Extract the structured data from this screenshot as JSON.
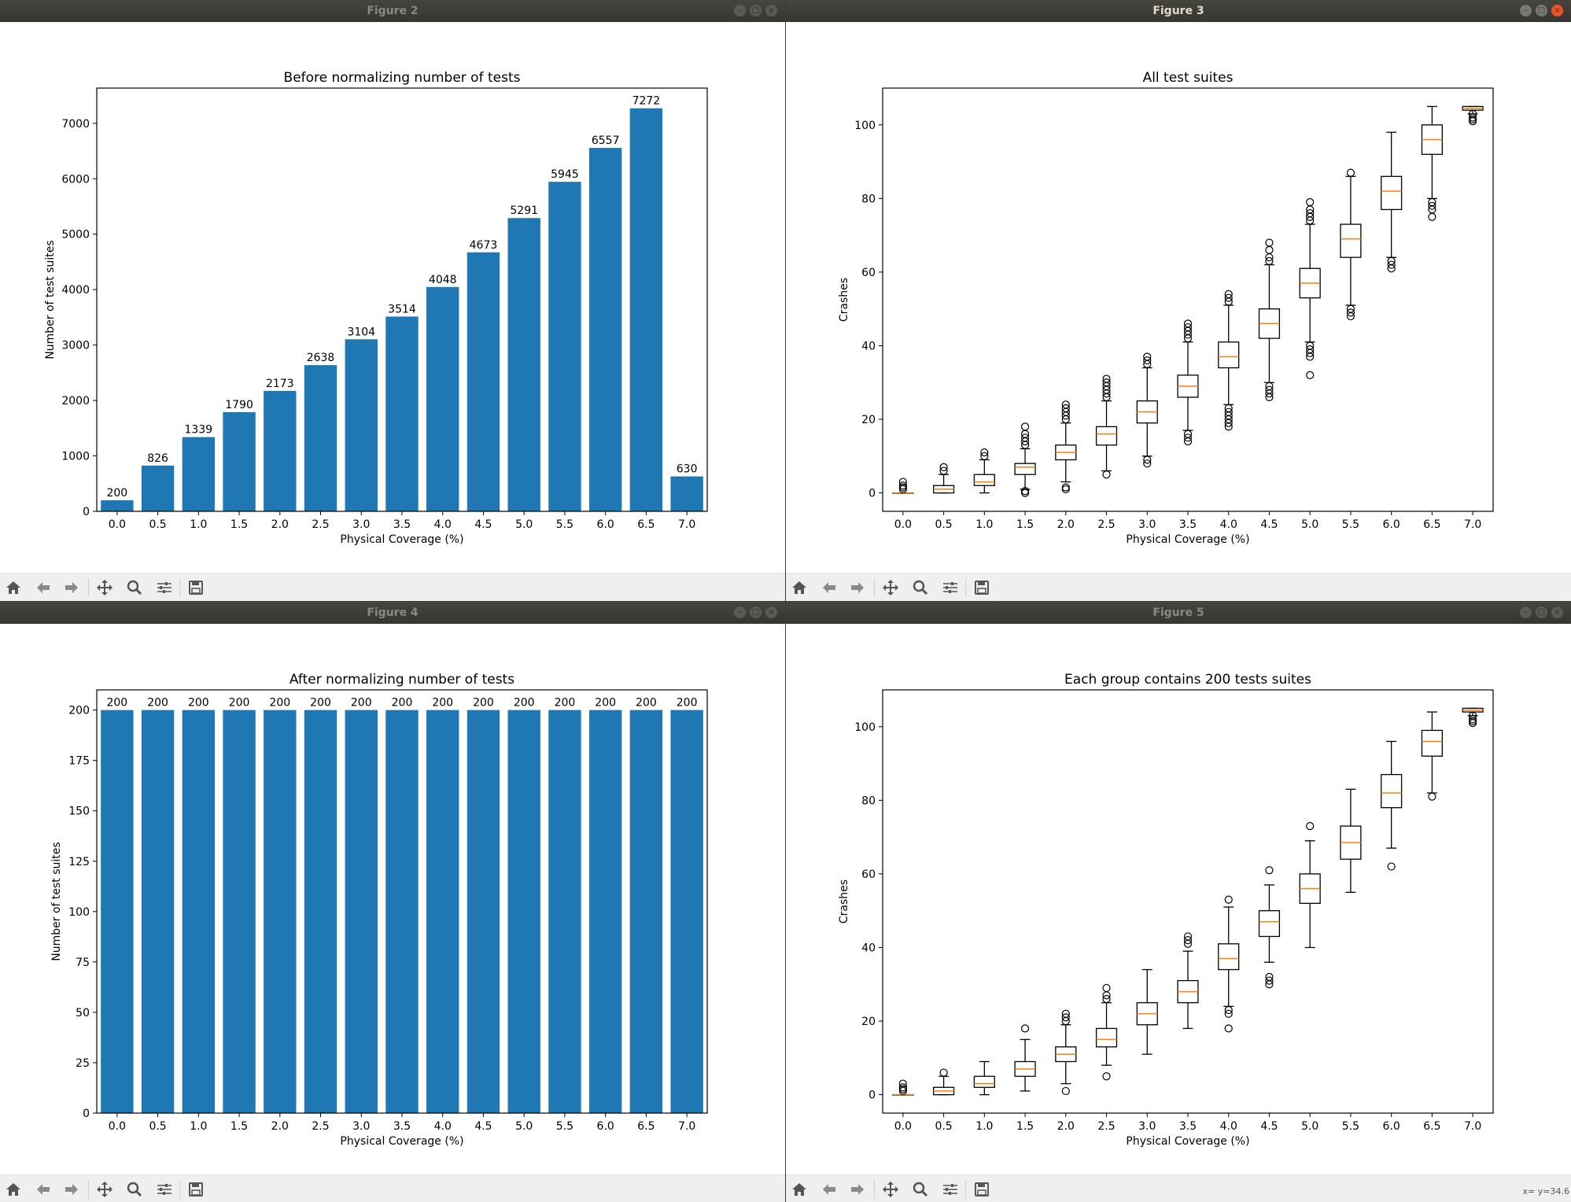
{
  "windows": [
    {
      "id": "figure-2",
      "title": "Figure 2",
      "chart_data": {
        "type": "bar",
        "title": "Before normalizing number of tests",
        "xlabel": "Physical Coverage (%)",
        "ylabel": "Number of test suites",
        "categories": [
          "0.0",
          "0.5",
          "1.0",
          "1.5",
          "2.0",
          "2.5",
          "3.0",
          "3.5",
          "4.0",
          "4.5",
          "5.0",
          "5.5",
          "6.0",
          "6.5",
          "7.0"
        ],
        "values": [
          200,
          826,
          1339,
          1790,
          2173,
          2638,
          3104,
          3514,
          4048,
          4673,
          5291,
          5945,
          6557,
          7272,
          630
        ],
        "data_labels": [
          "200",
          "826",
          "1339",
          "1790",
          "2173",
          "2638",
          "3104",
          "3514",
          "4048",
          "4673",
          "5291",
          "5945",
          "6557",
          "7272",
          "630"
        ],
        "ylim": [
          0,
          7636
        ],
        "yticks": [
          0,
          1000,
          2000,
          3000,
          4000,
          5000,
          6000,
          7000
        ],
        "color": "#1f77b4",
        "grid": false
      }
    },
    {
      "id": "figure-3",
      "title": "Figure 3",
      "chart_data": {
        "type": "boxplot",
        "title": "All test suites",
        "xlabel": "Physical Coverage (%)",
        "ylabel": "Crashes",
        "categories": [
          "0.0",
          "0.5",
          "1.0",
          "1.5",
          "2.0",
          "2.5",
          "3.0",
          "3.5",
          "4.0",
          "4.5",
          "5.0",
          "5.5",
          "6.0",
          "6.5",
          "7.0"
        ],
        "ylim": [
          -5,
          110
        ],
        "yticks": [
          0,
          20,
          40,
          60,
          80,
          100
        ],
        "median_color": "#ff7f0e",
        "grid": false,
        "boxes": [
          {
            "whislo": 0,
            "q1": 0,
            "med": 0,
            "q3": 0,
            "whishi": 0,
            "fliers": [
              1,
              1.5,
              2,
              3
            ]
          },
          {
            "whislo": 0,
            "q1": 0,
            "med": 1,
            "q3": 2,
            "whishi": 5,
            "fliers": [
              6,
              7
            ]
          },
          {
            "whislo": 0,
            "q1": 2,
            "med": 3,
            "q3": 5,
            "whishi": 9,
            "fliers": [
              10,
              11
            ]
          },
          {
            "whislo": 1,
            "q1": 5,
            "med": 7,
            "q3": 8,
            "whishi": 12,
            "fliers": [
              0,
              0.5,
              13,
              14,
              15,
              16,
              18
            ]
          },
          {
            "whislo": 3,
            "q1": 9,
            "med": 11,
            "q3": 13,
            "whishi": 19,
            "fliers": [
              1,
              1.5,
              20,
              21,
              22,
              23,
              24
            ]
          },
          {
            "whislo": 6,
            "q1": 13,
            "med": 16,
            "q3": 18,
            "whishi": 25,
            "fliers": [
              5,
              26,
              27,
              28,
              29,
              30,
              31
            ]
          },
          {
            "whislo": 10,
            "q1": 19,
            "med": 22,
            "q3": 25,
            "whishi": 34,
            "fliers": [
              8,
              9,
              35,
              36,
              37
            ]
          },
          {
            "whislo": 17,
            "q1": 26,
            "med": 29,
            "q3": 32,
            "whishi": 41,
            "fliers": [
              14,
              15,
              16,
              42,
              43,
              44,
              45,
              46
            ]
          },
          {
            "whislo": 24,
            "q1": 34,
            "med": 37,
            "q3": 41,
            "whishi": 51,
            "fliers": [
              18,
              19,
              20,
              21,
              22,
              23,
              52,
              53,
              54
            ]
          },
          {
            "whislo": 30,
            "q1": 42,
            "med": 46,
            "q3": 50,
            "whishi": 62,
            "fliers": [
              26,
              27,
              28,
              29,
              63,
              64,
              66,
              68
            ]
          },
          {
            "whislo": 41,
            "q1": 53,
            "med": 57,
            "q3": 61,
            "whishi": 73,
            "fliers": [
              32,
              37,
              38,
              39,
              40,
              74,
              75,
              76,
              77,
              79
            ]
          },
          {
            "whislo": 51,
            "q1": 64,
            "med": 69,
            "q3": 73,
            "whishi": 86,
            "fliers": [
              48,
              49,
              50,
              87
            ]
          },
          {
            "whislo": 64,
            "q1": 77,
            "med": 82,
            "q3": 86,
            "whishi": 98,
            "fliers": [
              61,
              62,
              63
            ]
          },
          {
            "whislo": 80,
            "q1": 92,
            "med": 96,
            "q3": 100,
            "whishi": 105,
            "fliers": [
              75,
              77,
              78,
              79
            ]
          },
          {
            "whislo": 103,
            "q1": 104,
            "med": 104.5,
            "q3": 105,
            "whishi": 105,
            "fliers": [
              101,
              101.5,
              102,
              103
            ]
          }
        ]
      }
    },
    {
      "id": "figure-4",
      "title": "Figure 4",
      "chart_data": {
        "type": "bar",
        "title": "After normalizing number of tests",
        "xlabel": "Physical Coverage (%)",
        "ylabel": "Number of test suites",
        "categories": [
          "0.0",
          "0.5",
          "1.0",
          "1.5",
          "2.0",
          "2.5",
          "3.0",
          "3.5",
          "4.0",
          "4.5",
          "5.0",
          "5.5",
          "6.0",
          "6.5",
          "7.0"
        ],
        "values": [
          200,
          200,
          200,
          200,
          200,
          200,
          200,
          200,
          200,
          200,
          200,
          200,
          200,
          200,
          200
        ],
        "data_labels": [
          "200",
          "200",
          "200",
          "200",
          "200",
          "200",
          "200",
          "200",
          "200",
          "200",
          "200",
          "200",
          "200",
          "200",
          "200"
        ],
        "ylim": [
          0,
          210
        ],
        "yticks": [
          0,
          25,
          50,
          75,
          100,
          125,
          150,
          175,
          200
        ],
        "color": "#1f77b4",
        "grid": false
      }
    },
    {
      "id": "figure-5",
      "title": "Figure 5",
      "chart_data": {
        "type": "boxplot",
        "title": "Each group contains 200 tests suites",
        "xlabel": "Physical Coverage (%)",
        "ylabel": "Crashes",
        "categories": [
          "0.0",
          "0.5",
          "1.0",
          "1.5",
          "2.0",
          "2.5",
          "3.0",
          "3.5",
          "4.0",
          "4.5",
          "5.0",
          "5.5",
          "6.0",
          "6.5",
          "7.0"
        ],
        "ylim": [
          -5,
          110
        ],
        "yticks": [
          0,
          20,
          40,
          60,
          80,
          100
        ],
        "median_color": "#ff7f0e",
        "grid": false,
        "boxes": [
          {
            "whislo": 0,
            "q1": 0,
            "med": 0,
            "q3": 0,
            "whishi": 0,
            "fliers": [
              1,
              1.5,
              2,
              3
            ]
          },
          {
            "whislo": 0,
            "q1": 0,
            "med": 1,
            "q3": 2,
            "whishi": 5,
            "fliers": [
              6
            ]
          },
          {
            "whislo": 0,
            "q1": 2,
            "med": 3,
            "q3": 5,
            "whishi": 9,
            "fliers": []
          },
          {
            "whislo": 1,
            "q1": 5,
            "med": 7,
            "q3": 9,
            "whishi": 15,
            "fliers": [
              18
            ]
          },
          {
            "whislo": 3,
            "q1": 9,
            "med": 11,
            "q3": 13,
            "whishi": 19,
            "fliers": [
              1,
              20,
              21,
              22
            ]
          },
          {
            "whislo": 8,
            "q1": 13,
            "med": 15,
            "q3": 18,
            "whishi": 25,
            "fliers": [
              5,
              26,
              27,
              29
            ]
          },
          {
            "whislo": 11,
            "q1": 19,
            "med": 22,
            "q3": 25,
            "whishi": 34,
            "fliers": []
          },
          {
            "whislo": 18,
            "q1": 25,
            "med": 28,
            "q3": 31,
            "whishi": 39,
            "fliers": [
              41,
              42,
              43
            ]
          },
          {
            "whislo": 24,
            "q1": 34,
            "med": 37,
            "q3": 41,
            "whishi": 51,
            "fliers": [
              18,
              22,
              23,
              53
            ]
          },
          {
            "whislo": 36,
            "q1": 43,
            "med": 47,
            "q3": 50,
            "whishi": 57,
            "fliers": [
              30,
              31,
              32,
              61
            ]
          },
          {
            "whislo": 40,
            "q1": 52,
            "med": 56,
            "q3": 60,
            "whishi": 69,
            "fliers": [
              73
            ]
          },
          {
            "whislo": 55,
            "q1": 64,
            "med": 68.5,
            "q3": 73,
            "whishi": 83,
            "fliers": []
          },
          {
            "whislo": 67,
            "q1": 78,
            "med": 82,
            "q3": 87,
            "whishi": 96,
            "fliers": [
              62
            ]
          },
          {
            "whislo": 82,
            "q1": 92,
            "med": 96,
            "q3": 99,
            "whishi": 104,
            "fliers": [
              81
            ]
          },
          {
            "whislo": 103,
            "q1": 104,
            "med": 104.5,
            "q3": 105,
            "whishi": 105,
            "fliers": [
              101,
              101.5,
              102,
              103
            ]
          }
        ]
      }
    }
  ],
  "toolbar": {
    "icons": [
      "home-icon",
      "back-icon",
      "forward-icon",
      "pan-icon",
      "zoom-icon",
      "configure-subplots-icon",
      "save-icon"
    ]
  },
  "status": {
    "coordinates": "x= y=34.6"
  }
}
